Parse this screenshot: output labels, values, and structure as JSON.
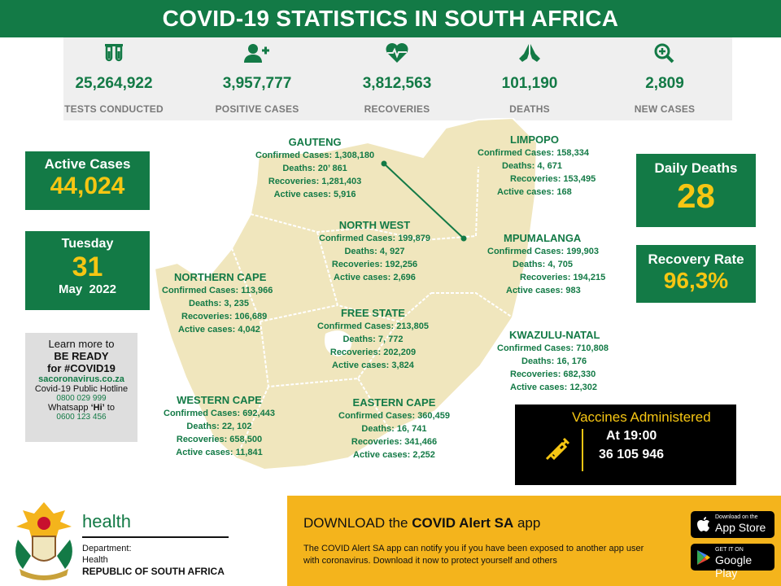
{
  "title": "COVID-19 STATISTICS IN SOUTH AFRICA",
  "stats": [
    {
      "value": "25,264,922",
      "label": "TESTS CONDUCTED",
      "icon": "test-tubes-icon"
    },
    {
      "value": "3,957,777",
      "label": "POSITIVE CASES",
      "icon": "add-user-icon"
    },
    {
      "value": "3,812,563",
      "label": "RECOVERIES",
      "icon": "heartbeat-icon"
    },
    {
      "value": "101,190",
      "label": "DEATHS",
      "icon": "praying-hands-icon"
    },
    {
      "value": "2,809",
      "label": "NEW CASES",
      "icon": "zoom-plus-icon"
    }
  ],
  "active": {
    "label": "Active Cases",
    "value": "44,024"
  },
  "date": {
    "weekday": "Tuesday",
    "day": "31",
    "monthyear": "May  2022"
  },
  "daily_deaths": {
    "label": "Daily Deaths",
    "value": "28"
  },
  "recovery": {
    "label": "Recovery Rate",
    "value": "96,3%"
  },
  "learn": {
    "l1": "Learn more to",
    "l2": "BE READY",
    "l3": "for #COVID19",
    "site": "sacoronavirus.co.za",
    "hotline_label": "Covid-19 Public Hotline",
    "hotline": "0800 029 999",
    "whatsapp_pre": "Whatsapp",
    "whatsapp_word": "‘Hi’",
    "whatsapp_post": "to",
    "whatsapp": "0600 123 456"
  },
  "provinces": {
    "gauteng": {
      "name": "GAUTENG",
      "confirmed": "Confirmed Cases: 1,308,180",
      "deaths": "Deaths: 20’ 861",
      "recoveries": "Recoveries: 1,281,403",
      "active": "Active cases: 5,916"
    },
    "limpopo": {
      "name": "LIMPOPO",
      "confirmed": "Confirmed Cases: 158,334",
      "deaths": "Deaths: 4, 671",
      "recoveries": "Recoveries: 153,495",
      "active": "Active cases: 168"
    },
    "northwest": {
      "name": "NORTH WEST",
      "confirmed": "Confirmed Cases: 199,879",
      "deaths": "Deaths:  4, 927",
      "recoveries": "Recoveries: 192,256",
      "active": "Active cases: 2,696"
    },
    "mpumalanga": {
      "name": "MPUMALANGA",
      "confirmed": "Confirmed Cases: 199,903",
      "deaths": "Deaths: 4, 705",
      "recoveries": "Recoveries: 194,215",
      "active": "Active cases: 983"
    },
    "northerncape": {
      "name": "NORTHERN CAPE",
      "confirmed": "Confirmed Cases: 113,966",
      "deaths": "Deaths: 3, 235",
      "recoveries": "Recoveries: 106,689",
      "active": "Active cases: 4,042"
    },
    "freestate": {
      "name": "FREE STATE",
      "confirmed": "Confirmed Cases: 213,805",
      "deaths": "Deaths:  7, 772",
      "recoveries": "Recoveries: 202,209",
      "active": "Active cases: 3,824"
    },
    "kzn": {
      "name": "KWAZULU-NATAL",
      "confirmed": "Confirmed Cases: 710,808",
      "deaths": "Deaths: 16, 176",
      "recoveries": "Recoveries: 682,330",
      "active": "Active cases: 12,302"
    },
    "westerncape": {
      "name": "WESTERN CAPE",
      "confirmed": "Confirmed Cases: 692,443",
      "deaths": "Deaths: 22, 102",
      "recoveries": "Recoveries: 658,500",
      "active": "Active cases: 11,841"
    },
    "easterncape": {
      "name": "EASTERN CAPE",
      "confirmed": "Confirmed Cases: 360,459",
      "deaths": "Deaths: 16, 741",
      "recoveries": "Recoveries: 341,466",
      "active": "Active cases: 2,252"
    }
  },
  "vaccines": {
    "title": "Vaccines Administered",
    "at": "At 19:00",
    "value": "36 105 946"
  },
  "footer": {
    "health": "health",
    "dept1": "Department:",
    "dept2": "Health",
    "dept3": "REPUBLIC OF SOUTH AFRICA",
    "download_pre": "DOWNLOAD the",
    "download_bold": "COVID Alert SA",
    "download_post": "app",
    "desc": "The COVID Alert SA app can notify you if you have been exposed to another app user with coronavirus. Download it now to protect yourself and others",
    "appstore_small": "Download on the",
    "appstore": "App Store",
    "gplay_small": "GET IT ON",
    "gplay": "Google Play"
  },
  "colors": {
    "green": "#137a46",
    "yellow": "#f6c613",
    "map": "#f0e6bd",
    "footer": "#f4b41c"
  }
}
